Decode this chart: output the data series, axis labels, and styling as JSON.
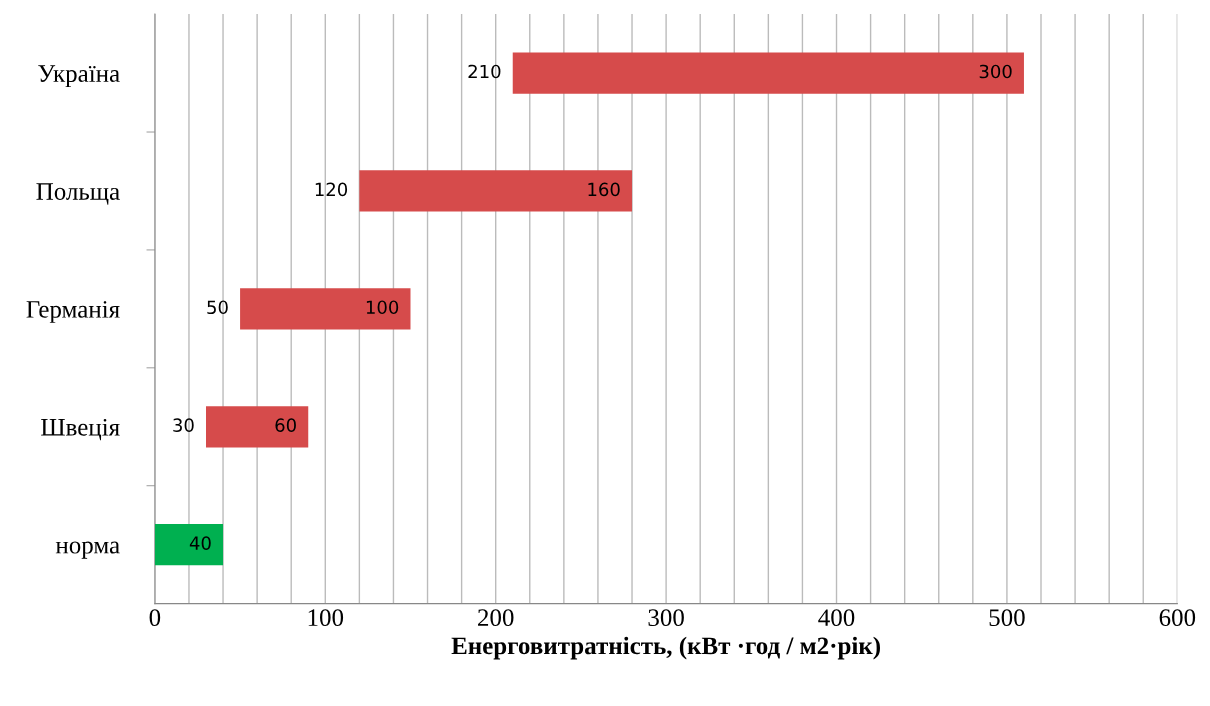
{
  "chart_data": {
    "type": "bar",
    "orientation": "horizontal",
    "xlabel": "Енерговитратність, (кВт ·год / м2·рік)",
    "categories": [
      "Україна",
      "Польща",
      "Германія",
      "Швеція",
      "норма"
    ],
    "values": [
      300,
      160,
      100,
      60,
      40
    ],
    "base": [
      210,
      120,
      50,
      30,
      0
    ],
    "colors": [
      "#d64b4b",
      "#d64b4b",
      "#d64b4b",
      "#d64b4b",
      "#00b050"
    ],
    "value_labels": [
      "300",
      "160",
      "100",
      "60",
      "40"
    ],
    "annotations": [
      {
        "text": "210",
        "x": 210,
        "y": "Україна"
      },
      {
        "text": "120",
        "x": 120,
        "y": "Польща"
      },
      {
        "text": "50",
        "x": 50,
        "y": "Германія"
      },
      {
        "text": "30",
        "x": 30,
        "y": "Швеція"
      }
    ],
    "xlim": [
      0,
      600
    ],
    "xticks": [
      0,
      {
        "value": 20,
        "label": null
      },
      {
        "value": 40,
        "label": null
      },
      {
        "value": 60,
        "label": null
      },
      {
        "value": 80,
        "label": null
      },
      100,
      {
        "value": 120,
        "label": null
      },
      {
        "value": 140,
        "label": null
      },
      {
        "value": 160,
        "label": null
      },
      {
        "value": 180,
        "label": null
      },
      200,
      {
        "value": 220,
        "label": null
      },
      {
        "value": 240,
        "label": null
      },
      {
        "value": 260,
        "label": null
      },
      {
        "value": 280,
        "label": null
      },
      300,
      {
        "value": 320,
        "label": null
      },
      {
        "value": 340,
        "label": null
      },
      {
        "value": 360,
        "label": null
      },
      {
        "value": 380,
        "label": null
      },
      400,
      {
        "value": 420,
        "label": null
      },
      {
        "value": 440,
        "label": null
      },
      {
        "value": 460,
        "label": null
      },
      {
        "value": 480,
        "label": null
      },
      500,
      {
        "value": 520,
        "label": null
      },
      {
        "value": 540,
        "label": null
      },
      {
        "value": 560,
        "label": null
      },
      {
        "value": 580,
        "label": null
      },
      600
    ],
    "grid": "x"
  }
}
